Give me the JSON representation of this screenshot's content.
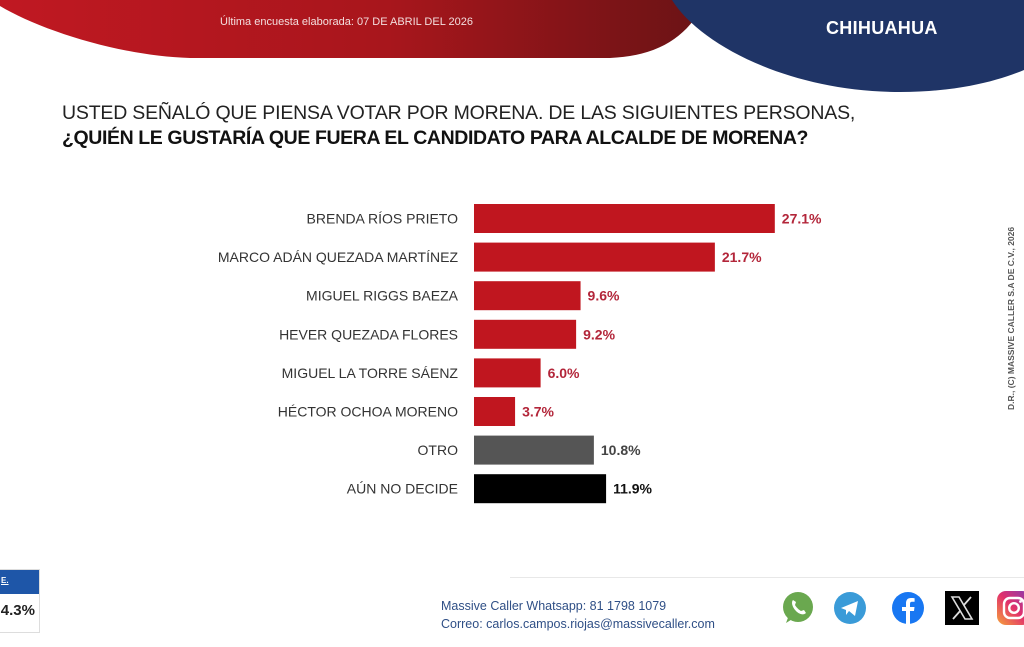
{
  "header": {
    "survey_date": "Última encuesta elaborada: 07 DE ABRIL DEL 2026",
    "region": "CHIHUAHUA"
  },
  "question": {
    "line1": "USTED SEÑALÓ QUE PIENSA VOTAR POR MORENA. DE LAS SIGUIENTES PERSONAS,",
    "line2": "¿QUIÉN LE GUSTARÍA QUE FUERA EL CANDIDATO PARA ALCALDE DE MORENA?"
  },
  "chart_data": {
    "type": "bar",
    "orientation": "horizontal",
    "title": "¿QUIÉN LE GUSTARÍA QUE FUERA EL CANDIDATO PARA ALCALDE DE MORENA?",
    "xlabel": "",
    "ylabel": "",
    "xlim": [
      0,
      30
    ],
    "grid": false,
    "categories": [
      "BRENDA RÍOS PRIETO",
      "MARCO ADÁN QUEZADA MARTÍNEZ",
      "MIGUEL RIGGS BAEZA",
      "HEVER QUEZADA FLORES",
      "MIGUEL LA TORRE SÁENZ",
      "HÉCTOR OCHOA MORENO",
      "OTRO",
      "AÚN NO DECIDE"
    ],
    "values": [
      27.1,
      21.7,
      9.6,
      9.2,
      6.0,
      3.7,
      10.8,
      11.9
    ],
    "value_labels": [
      "27.1%",
      "21.7%",
      "9.6%",
      "9.2%",
      "6.0%",
      "3.7%",
      "10.8%",
      "11.9%"
    ],
    "bar_colors": [
      "#c0161f",
      "#c0161f",
      "#c0161f",
      "#c0161f",
      "#c0161f",
      "#c0161f",
      "#555555",
      "#000000"
    ],
    "label_colors": [
      "#b3263a",
      "#b3263a",
      "#b3263a",
      "#b3263a",
      "#b3263a",
      "#b3263a",
      "#444444",
      "#111111"
    ]
  },
  "copyright": "D.R., (C) MASSIVE CALLER S.A DE C.V., 2026",
  "side_box": {
    "header": "E.",
    "value": "4.3%"
  },
  "footer": {
    "whatsapp": "Massive Caller Whatsapp: 81 1798 1079",
    "email": "Correo: carlos.campos.riojas@massivecaller.com",
    "social_icons": [
      "whatsapp-icon",
      "telegram-icon",
      "facebook-icon",
      "x-icon",
      "instagram-icon"
    ]
  },
  "colors": {
    "red": "#b5141c",
    "dark_red": "#6e1416",
    "navy": "#1f3466",
    "accent_blue": "#1e56a8"
  }
}
